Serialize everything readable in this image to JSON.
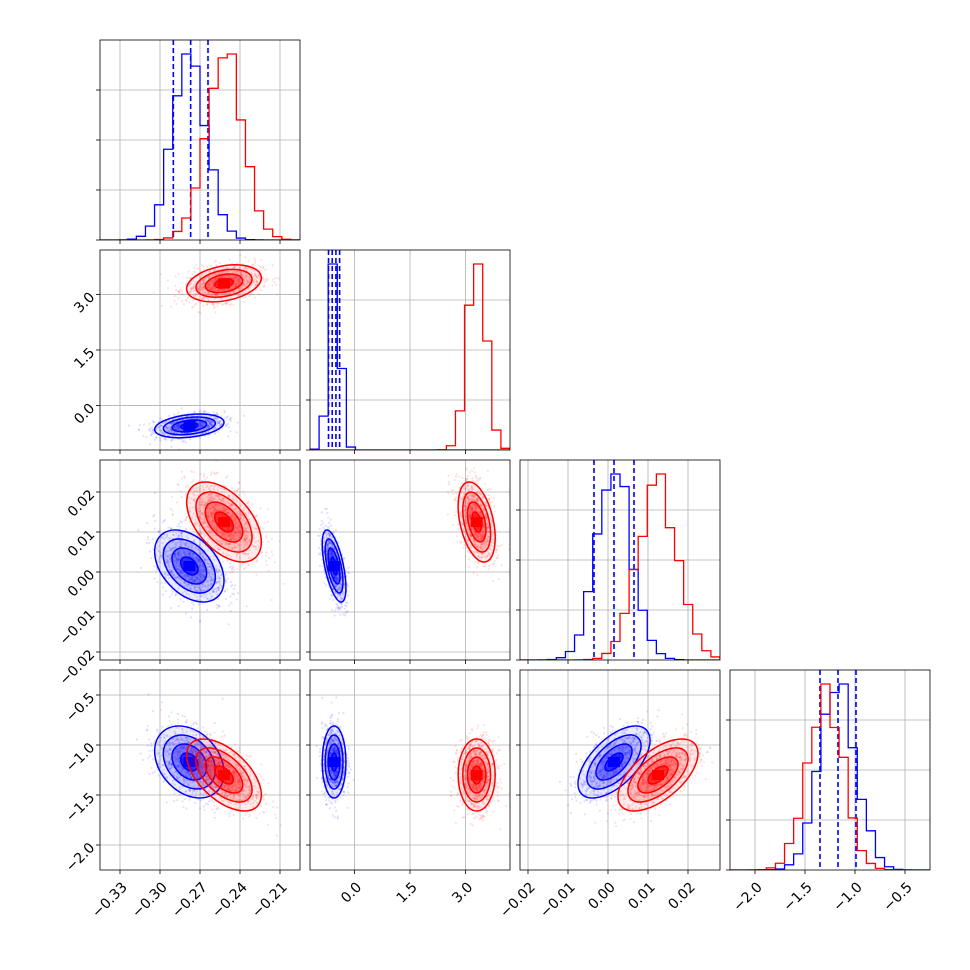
{
  "chart_data": {
    "type": "corner",
    "title": "",
    "grid": true,
    "colors": {
      "series_a": "#0000ff",
      "series_b": "#ff0000"
    },
    "parameters": [
      {
        "range": [
          -0.345,
          -0.195
        ],
        "ticks": [
          "-0.33",
          "-0.30",
          "-0.27",
          "-0.24",
          "-0.21"
        ],
        "tick_values": [
          -0.33,
          -0.3,
          -0.27,
          -0.24,
          -0.21
        ]
      },
      {
        "range": [
          -1.2,
          4.2
        ],
        "ticks": [
          "0.0",
          "1.5",
          "3.0"
        ],
        "tick_values": [
          0.0,
          1.5,
          3.0
        ]
      },
      {
        "range": [
          -0.022,
          0.028
        ],
        "ticks": [
          "-0.02",
          "-0.01",
          "0.00",
          "0.01",
          "0.02"
        ],
        "tick_values": [
          -0.02,
          -0.01,
          0.0,
          0.01,
          0.02
        ]
      },
      {
        "range": [
          -2.25,
          -0.25
        ],
        "ticks": [
          "-2.0",
          "-1.5",
          "-1.0",
          "-0.5"
        ],
        "tick_values": [
          -2.0,
          -1.5,
          -1.0,
          -0.5
        ]
      }
    ],
    "series": [
      {
        "color": "#0000ff",
        "mean": [
          -0.278,
          -0.55,
          0.0015,
          -1.17
        ],
        "std": [
          0.013,
          0.16,
          0.0045,
          0.18
        ],
        "corr": {
          "0-1": 0.3,
          "0-2": -0.4,
          "0-3": -0.3,
          "1-2": -0.6,
          "1-3": 0.0,
          "2-3": 0.6
        },
        "quantiles": [
          [
            -0.29,
            -0.277,
            -0.264
          ],
          [
            -0.7,
            -0.6,
            -0.5,
            -0.4
          ],
          [
            -0.0035,
            0.0015,
            0.0065
          ],
          [
            -1.35,
            -1.17,
            -0.99
          ]
        ]
      },
      {
        "color": "#ff0000",
        "mean": [
          -0.252,
          3.3,
          0.0125,
          -1.3
        ],
        "std": [
          0.014,
          0.25,
          0.005,
          0.18
        ],
        "corr": {
          "0-1": 0.3,
          "0-2": -0.5,
          "0-3": -0.55,
          "1-2": -0.4,
          "1-3": 0.0,
          "2-3": 0.6
        }
      }
    ]
  }
}
